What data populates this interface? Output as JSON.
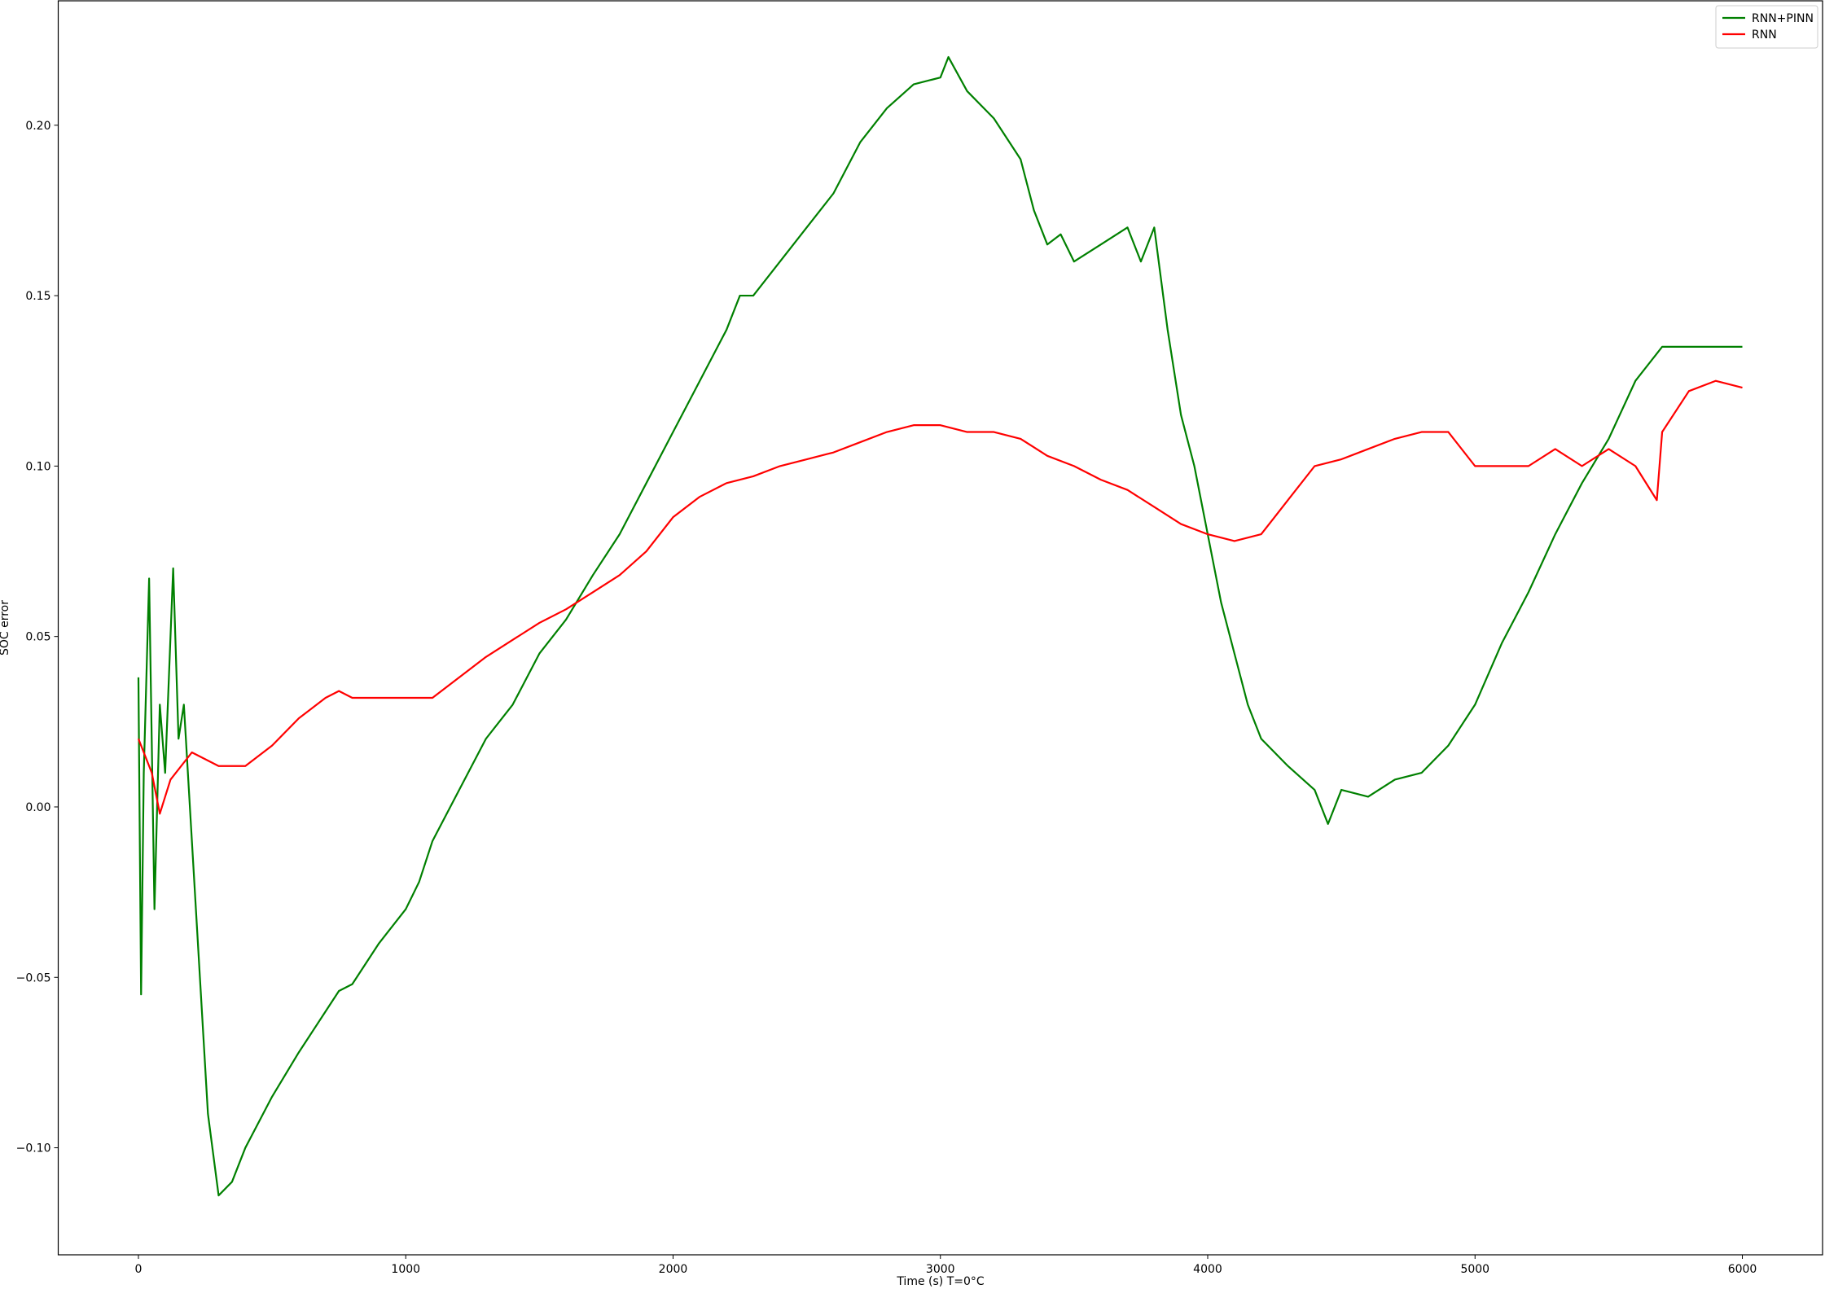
{
  "chart_data": {
    "type": "line",
    "xlabel": "Time (s) T=0°C",
    "ylabel": "SOC error",
    "xlim": [
      -300,
      6300
    ],
    "ylim": [
      -0.1314,
      0.2365
    ],
    "xticks": [
      0,
      1000,
      2000,
      3000,
      4000,
      5000,
      6000
    ],
    "yticks": [
      {
        "value": -0.1,
        "label": "−0.10"
      },
      {
        "value": -0.05,
        "label": "−0.05"
      },
      {
        "value": 0,
        "label": "0.00"
      },
      0.05,
      {
        "value": 0.1,
        "label": "0.10"
      },
      0.15,
      {
        "value": 0.2,
        "label": "0.20"
      }
    ],
    "legend": "upper right",
    "series": [
      {
        "name": "RNN+PINN",
        "color": "#008000",
        "x": [
          0,
          10,
          20,
          40,
          60,
          80,
          100,
          130,
          150,
          170,
          200,
          230,
          260,
          300,
          350,
          400,
          500,
          600,
          700,
          750,
          800,
          900,
          1000,
          1050,
          1100,
          1200,
          1300,
          1400,
          1500,
          1600,
          1700,
          1800,
          1900,
          2000,
          2100,
          2200,
          2250,
          2300,
          2400,
          2500,
          2600,
          2700,
          2800,
          2900,
          3000,
          3030,
          3100,
          3200,
          3300,
          3350,
          3400,
          3450,
          3500,
          3600,
          3700,
          3750,
          3800,
          3850,
          3900,
          3950,
          4000,
          4050,
          4100,
          4150,
          4200,
          4300,
          4400,
          4450,
          4500,
          4600,
          4700,
          4800,
          4900,
          5000,
          5100,
          5200,
          5300,
          5400,
          5500,
          5600,
          5700,
          5800,
          6000
        ],
        "values": [
          0.038,
          -0.055,
          0.01,
          0.067,
          -0.03,
          0.03,
          0.01,
          0.07,
          0.02,
          0.03,
          -0.01,
          -0.05,
          -0.09,
          -0.114,
          -0.11,
          -0.1,
          -0.085,
          -0.072,
          -0.06,
          -0.054,
          -0.052,
          -0.04,
          -0.03,
          -0.022,
          -0.01,
          0.005,
          0.02,
          0.03,
          0.045,
          0.055,
          0.068,
          0.08,
          0.095,
          0.11,
          0.125,
          0.14,
          0.15,
          0.15,
          0.16,
          0.17,
          0.18,
          0.195,
          0.205,
          0.212,
          0.214,
          0.22,
          0.21,
          0.202,
          0.19,
          0.175,
          0.165,
          0.168,
          0.16,
          0.165,
          0.17,
          0.16,
          0.17,
          0.14,
          0.115,
          0.1,
          0.08,
          0.06,
          0.045,
          0.03,
          0.02,
          0.012,
          0.005,
          -0.005,
          0.005,
          0.003,
          0.008,
          0.01,
          0.018,
          0.03,
          0.048,
          0.063,
          0.08,
          0.095,
          0.108,
          0.125,
          0.135,
          0.135,
          0.135
        ]
      },
      {
        "name": "RNN",
        "color": "#ff0000",
        "x": [
          0,
          50,
          80,
          120,
          200,
          300,
          400,
          500,
          600,
          700,
          750,
          800,
          900,
          1000,
          1100,
          1200,
          1300,
          1400,
          1500,
          1600,
          1700,
          1800,
          1900,
          2000,
          2100,
          2200,
          2300,
          2400,
          2500,
          2600,
          2700,
          2800,
          2900,
          3000,
          3100,
          3200,
          3300,
          3400,
          3500,
          3600,
          3700,
          3800,
          3900,
          4000,
          4100,
          4200,
          4300,
          4400,
          4500,
          4600,
          4700,
          4800,
          4900,
          5000,
          5100,
          5200,
          5300,
          5400,
          5500,
          5600,
          5680,
          5700,
          5800,
          5900,
          6000
        ],
        "values": [
          0.02,
          0.01,
          -0.002,
          0.008,
          0.016,
          0.012,
          0.012,
          0.018,
          0.026,
          0.032,
          0.034,
          0.032,
          0.032,
          0.032,
          0.032,
          0.038,
          0.044,
          0.049,
          0.054,
          0.058,
          0.063,
          0.068,
          0.075,
          0.085,
          0.091,
          0.095,
          0.097,
          0.1,
          0.102,
          0.104,
          0.107,
          0.11,
          0.112,
          0.112,
          0.11,
          0.11,
          0.108,
          0.103,
          0.1,
          0.096,
          0.093,
          0.088,
          0.083,
          0.08,
          0.078,
          0.08,
          0.09,
          0.1,
          0.102,
          0.105,
          0.108,
          0.11,
          0.11,
          0.1,
          0.1,
          0.1,
          0.105,
          0.1,
          0.105,
          0.1,
          0.09,
          0.11,
          0.122,
          0.125,
          0.123
        ]
      }
    ]
  }
}
